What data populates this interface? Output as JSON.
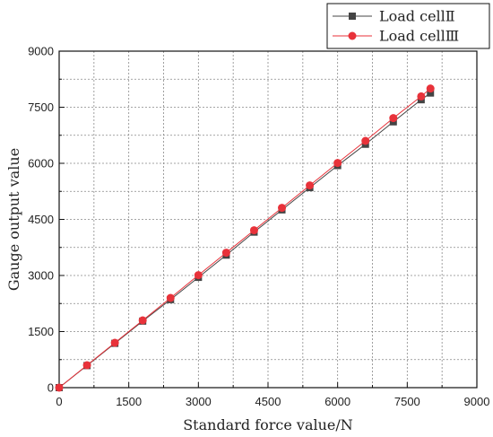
{
  "chart_data": {
    "type": "line",
    "xlabel": "Standard force value/N",
    "ylabel": "Gauge output value",
    "xlim": [
      0,
      9000
    ],
    "ylim": [
      0,
      9000
    ],
    "xticks": [
      0,
      1500,
      3000,
      4500,
      6000,
      7500,
      9000
    ],
    "yticks": [
      0,
      1500,
      3000,
      4500,
      6000,
      7500,
      9000
    ],
    "xtick_labels": [
      "0",
      "1500",
      "3000",
      "4500",
      "6000",
      "7500",
      "9000"
    ],
    "ytick_labels": [
      "0",
      "1500",
      "3000",
      "4500",
      "6000",
      "7500",
      "9000"
    ],
    "grid": true,
    "legend_position": "top-right",
    "series": [
      {
        "name": "Load cellⅡ",
        "color": "#444444",
        "marker": "square",
        "x": [
          0,
          600,
          1200,
          1800,
          2400,
          3000,
          3600,
          4200,
          4800,
          5400,
          6000,
          6600,
          7200,
          7800,
          8000
        ],
        "y": [
          0,
          590,
          1185,
          1780,
          2355,
          2950,
          3545,
          4160,
          4755,
          5350,
          5940,
          6510,
          7110,
          7700,
          7880
        ]
      },
      {
        "name": "Load cellⅢ",
        "color": "#e8323a",
        "marker": "circle",
        "x": [
          0,
          600,
          1200,
          1800,
          2400,
          3000,
          3600,
          4200,
          4800,
          5400,
          6000,
          6600,
          7200,
          7800,
          8000
        ],
        "y": [
          0,
          600,
          1200,
          1800,
          2400,
          3010,
          3610,
          4210,
          4810,
          5410,
          6010,
          6600,
          7210,
          7790,
          8000
        ]
      }
    ]
  }
}
